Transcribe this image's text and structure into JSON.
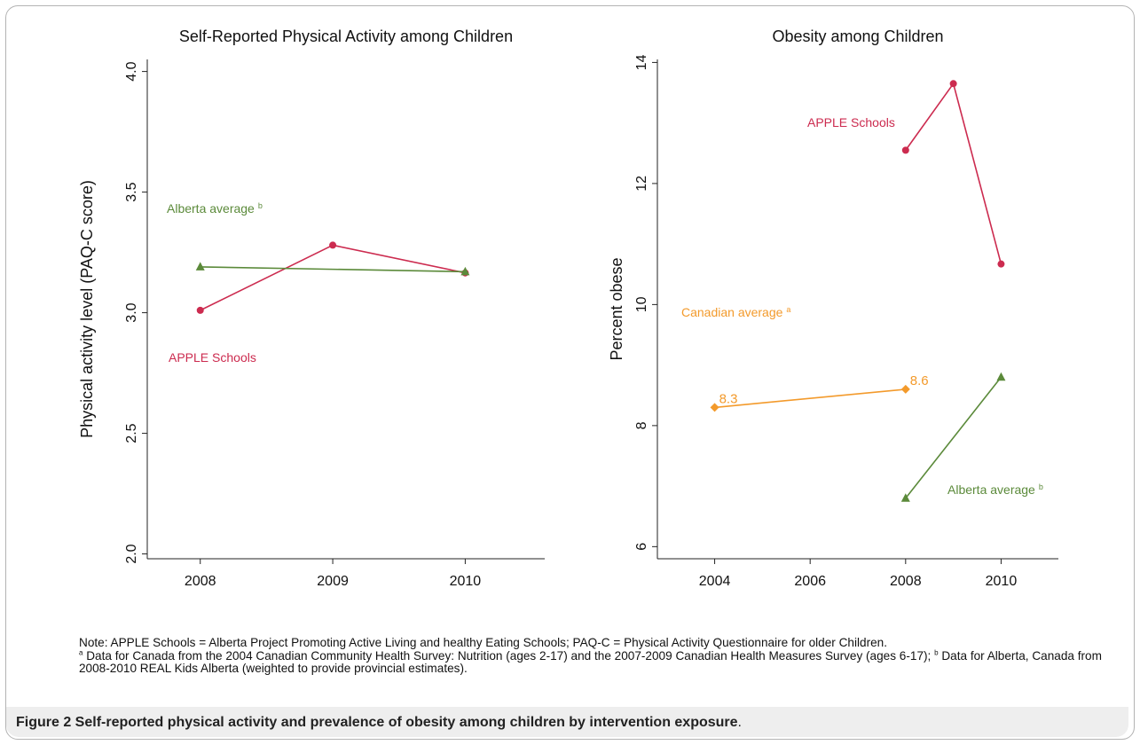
{
  "chart_data": [
    {
      "type": "line",
      "title": "Self-Reported Physical Activity among Children",
      "xlabel": "",
      "ylabel": "Physical activity level (PAQ-C score)",
      "xticks": [
        "2008",
        "2009",
        "2010"
      ],
      "yticks": [
        "2.0",
        "2.5",
        "3.0",
        "3.5",
        "4.0"
      ],
      "xlim": [
        2007.6,
        2010.6
      ],
      "ylim": [
        1.98,
        4.05
      ],
      "grid": false,
      "series": [
        {
          "name": "APPLE Schools",
          "color": "#cc2b4f",
          "marker": "circle",
          "x": [
            2008,
            2009,
            2010
          ],
          "y": [
            3.01,
            3.28,
            3.165
          ]
        },
        {
          "name": "Alberta average",
          "name_sup": "b",
          "color": "#5b8a3a",
          "marker": "triangle",
          "x": [
            2008,
            2010
          ],
          "y": [
            3.19,
            3.17
          ]
        }
      ]
    },
    {
      "type": "line",
      "title": "Obesity among Children",
      "xlabel": "",
      "ylabel": "Percent obese",
      "xticks": [
        "2004",
        "2006",
        "2008",
        "2010"
      ],
      "yticks": [
        "6",
        "8",
        "10",
        "12",
        "14"
      ],
      "xlim": [
        2002.8,
        2011.2
      ],
      "ylim": [
        5.8,
        14.05
      ],
      "grid": false,
      "series": [
        {
          "name": "APPLE Schools",
          "color": "#cc2b4f",
          "marker": "circle",
          "x": [
            2008,
            2009,
            2010
          ],
          "y": [
            12.55,
            13.65,
            10.67
          ]
        },
        {
          "name": "Canadian average",
          "name_sup": "a",
          "color": "#f39a2b",
          "marker": "diamond",
          "x": [
            2004,
            2008
          ],
          "y": [
            8.3,
            8.6
          ],
          "data_labels": [
            "8.3",
            "8.6"
          ]
        },
        {
          "name": "Alberta average",
          "name_sup": "b",
          "color": "#5b8a3a",
          "marker": "triangle",
          "x": [
            2008,
            2010
          ],
          "y": [
            6.8,
            8.8
          ]
        }
      ]
    }
  ],
  "note": {
    "line1": "Note: APPLE Schools = Alberta Project Promoting Active Living and healthy Eating Schools; PAQ-C = Physical Activity Questionnaire for older Children.",
    "line2_sup": "a",
    "line2": " Data for Canada from the 2004 Canadian Community Health Survey: Nutrition (ages 2-17) and the 2007-2009 Canadian Health Measures Survey (ages 6-17); ",
    "line2b_sup": "b",
    "line2b": " Data for Alberta, Canada from 2008-2010 REAL Kids Alberta (weighted to provide provincial estimates)."
  },
  "caption": {
    "label": "Figure 2",
    "text": " Self-reported physical activity and prevalence of obesity among children by intervention exposure",
    "period": "."
  }
}
